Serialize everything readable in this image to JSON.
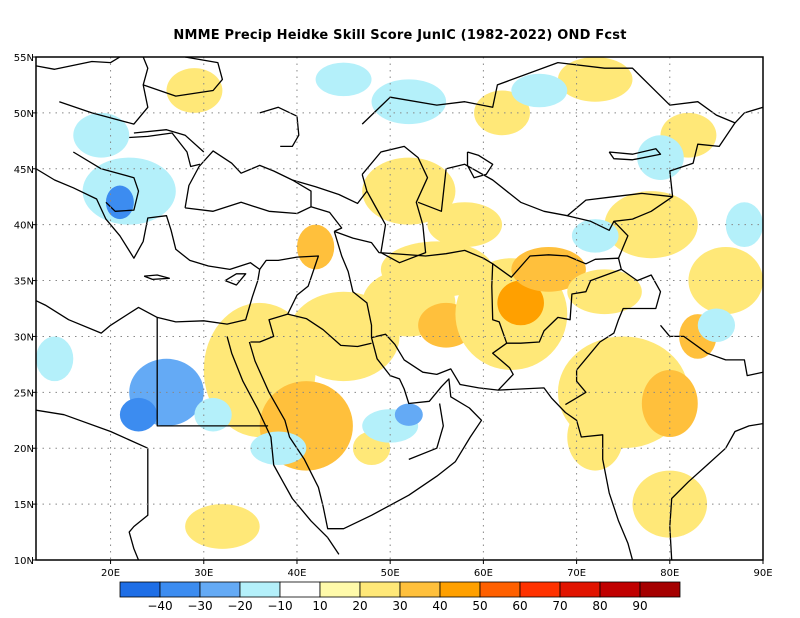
{
  "title": "NMME Precip Heidke Skill Score JunIC (1982-2022) OND Fcst",
  "colors": {
    "land_outline": "#000000",
    "grid": "#888888",
    "frame": "#000000"
  },
  "map": {
    "lon_range": [
      12,
      90
    ],
    "lat_range": [
      10,
      55
    ],
    "lon_ticks": [
      {
        "value": 20,
        "label": "20E"
      },
      {
        "value": 30,
        "label": "30E"
      },
      {
        "value": 40,
        "label": "40E"
      },
      {
        "value": 50,
        "label": "50E"
      },
      {
        "value": 60,
        "label": "60E"
      },
      {
        "value": 70,
        "label": "70E"
      },
      {
        "value": 80,
        "label": "80E"
      },
      {
        "value": 90,
        "label": "90E"
      }
    ],
    "lat_ticks": [
      {
        "value": 10,
        "label": "10N"
      },
      {
        "value": 15,
        "label": "15N"
      },
      {
        "value": 20,
        "label": "20N"
      },
      {
        "value": 25,
        "label": "25N"
      },
      {
        "value": 30,
        "label": "30N"
      },
      {
        "value": 35,
        "label": "35N"
      },
      {
        "value": 40,
        "label": "40N"
      },
      {
        "value": 45,
        "label": "45N"
      },
      {
        "value": 50,
        "label": "50N"
      },
      {
        "value": 55,
        "label": "55N"
      }
    ],
    "skill_patches": [
      {
        "lon": 36,
        "lat": 27,
        "rx": 6,
        "ry": 6,
        "level": 20
      },
      {
        "lon": 41,
        "lat": 22,
        "rx": 5,
        "ry": 4,
        "level": 30
      },
      {
        "lon": 45,
        "lat": 30,
        "rx": 6,
        "ry": 4,
        "level": 20
      },
      {
        "lon": 52,
        "lat": 33,
        "rx": 5,
        "ry": 3,
        "level": 20
      },
      {
        "lon": 55,
        "lat": 36,
        "rx": 6,
        "ry": 2.5,
        "level": 20
      },
      {
        "lon": 56,
        "lat": 31,
        "rx": 3,
        "ry": 2,
        "level": 30
      },
      {
        "lon": 63,
        "lat": 32,
        "rx": 6,
        "ry": 5,
        "level": 20
      },
      {
        "lon": 64,
        "lat": 33,
        "rx": 2.5,
        "ry": 2,
        "level": 40
      },
      {
        "lon": 67,
        "lat": 36,
        "rx": 4,
        "ry": 2,
        "level": 30
      },
      {
        "lon": 73,
        "lat": 34,
        "rx": 4,
        "ry": 2,
        "level": 20
      },
      {
        "lon": 75,
        "lat": 25,
        "rx": 7,
        "ry": 5,
        "level": 20
      },
      {
        "lon": 80,
        "lat": 24,
        "rx": 3,
        "ry": 3,
        "level": 30
      },
      {
        "lon": 72,
        "lat": 21,
        "rx": 3,
        "ry": 3,
        "level": 20
      },
      {
        "lon": 80,
        "lat": 15,
        "rx": 4,
        "ry": 3,
        "level": 20
      },
      {
        "lon": 83,
        "lat": 30,
        "rx": 2,
        "ry": 2,
        "level": 30
      },
      {
        "lon": 52,
        "lat": 43,
        "rx": 5,
        "ry": 3,
        "level": 20
      },
      {
        "lon": 58,
        "lat": 40,
        "rx": 4,
        "ry": 2,
        "level": 20
      },
      {
        "lon": 78,
        "lat": 40,
        "rx": 5,
        "ry": 3,
        "level": 20
      },
      {
        "lon": 86,
        "lat": 35,
        "rx": 4,
        "ry": 3,
        "level": 20
      },
      {
        "lon": 72,
        "lat": 53,
        "rx": 4,
        "ry": 2,
        "level": 20
      },
      {
        "lon": 82,
        "lat": 48,
        "rx": 3,
        "ry": 2,
        "level": 20
      },
      {
        "lon": 29,
        "lat": 52,
        "rx": 3,
        "ry": 2,
        "level": 20
      },
      {
        "lon": 32,
        "lat": 13,
        "rx": 4,
        "ry": 2,
        "level": 20
      },
      {
        "lon": 48,
        "lat": 20,
        "rx": 2,
        "ry": 1.5,
        "level": 20
      },
      {
        "lon": 62,
        "lat": 50,
        "rx": 3,
        "ry": 2,
        "level": 20
      },
      {
        "lon": 42,
        "lat": 38,
        "rx": 2,
        "ry": 2,
        "level": 30
      },
      {
        "lon": 26,
        "lat": 25,
        "rx": 4,
        "ry": 3,
        "level": -20
      },
      {
        "lon": 23,
        "lat": 23,
        "rx": 2,
        "ry": 1.5,
        "level": -30
      },
      {
        "lon": 22,
        "lat": 43,
        "rx": 5,
        "ry": 3,
        "level": -10
      },
      {
        "lon": 21,
        "lat": 42,
        "rx": 1.5,
        "ry": 1.5,
        "level": -30
      },
      {
        "lon": 19,
        "lat": 48,
        "rx": 3,
        "ry": 2,
        "level": -10
      },
      {
        "lon": 14,
        "lat": 28,
        "rx": 2,
        "ry": 2,
        "level": -10
      },
      {
        "lon": 52,
        "lat": 51,
        "rx": 4,
        "ry": 2,
        "level": -10
      },
      {
        "lon": 45,
        "lat": 53,
        "rx": 3,
        "ry": 1.5,
        "level": -10
      },
      {
        "lon": 66,
        "lat": 52,
        "rx": 3,
        "ry": 1.5,
        "level": -10
      },
      {
        "lon": 79,
        "lat": 46,
        "rx": 2.5,
        "ry": 2,
        "level": -10
      },
      {
        "lon": 85,
        "lat": 31,
        "rx": 2,
        "ry": 1.5,
        "level": -10
      },
      {
        "lon": 38,
        "lat": 20,
        "rx": 3,
        "ry": 1.5,
        "level": -10
      },
      {
        "lon": 50,
        "lat": 22,
        "rx": 3,
        "ry": 1.5,
        "level": -10
      },
      {
        "lon": 52,
        "lat": 23,
        "rx": 1.5,
        "ry": 1,
        "level": -20
      },
      {
        "lon": 72,
        "lat": 39,
        "rx": 2.5,
        "ry": 1.5,
        "level": -10
      },
      {
        "lon": 88,
        "lat": 40,
        "rx": 2,
        "ry": 2,
        "level": -10
      },
      {
        "lon": 31,
        "lat": 23,
        "rx": 2,
        "ry": 1.5,
        "level": -10
      }
    ]
  },
  "colorbar": {
    "levels": [
      -50,
      -40,
      -30,
      -20,
      -10,
      10,
      20,
      30,
      40,
      50,
      60,
      70,
      80,
      90,
      100
    ],
    "labels": [
      "−40",
      "−30",
      "−20",
      "−10",
      "10",
      "20",
      "30",
      "40",
      "50",
      "60",
      "70",
      "80",
      "90"
    ],
    "colors": [
      "#1e6ee6",
      "#3c8cf0",
      "#64aaf5",
      "#b4f0fa",
      "#ffffff",
      "#fffaaa",
      "#ffe878",
      "#ffc03c",
      "#ffa000",
      "#ff6000",
      "#ff3200",
      "#e11400",
      "#c00000",
      "#a50000"
    ]
  }
}
